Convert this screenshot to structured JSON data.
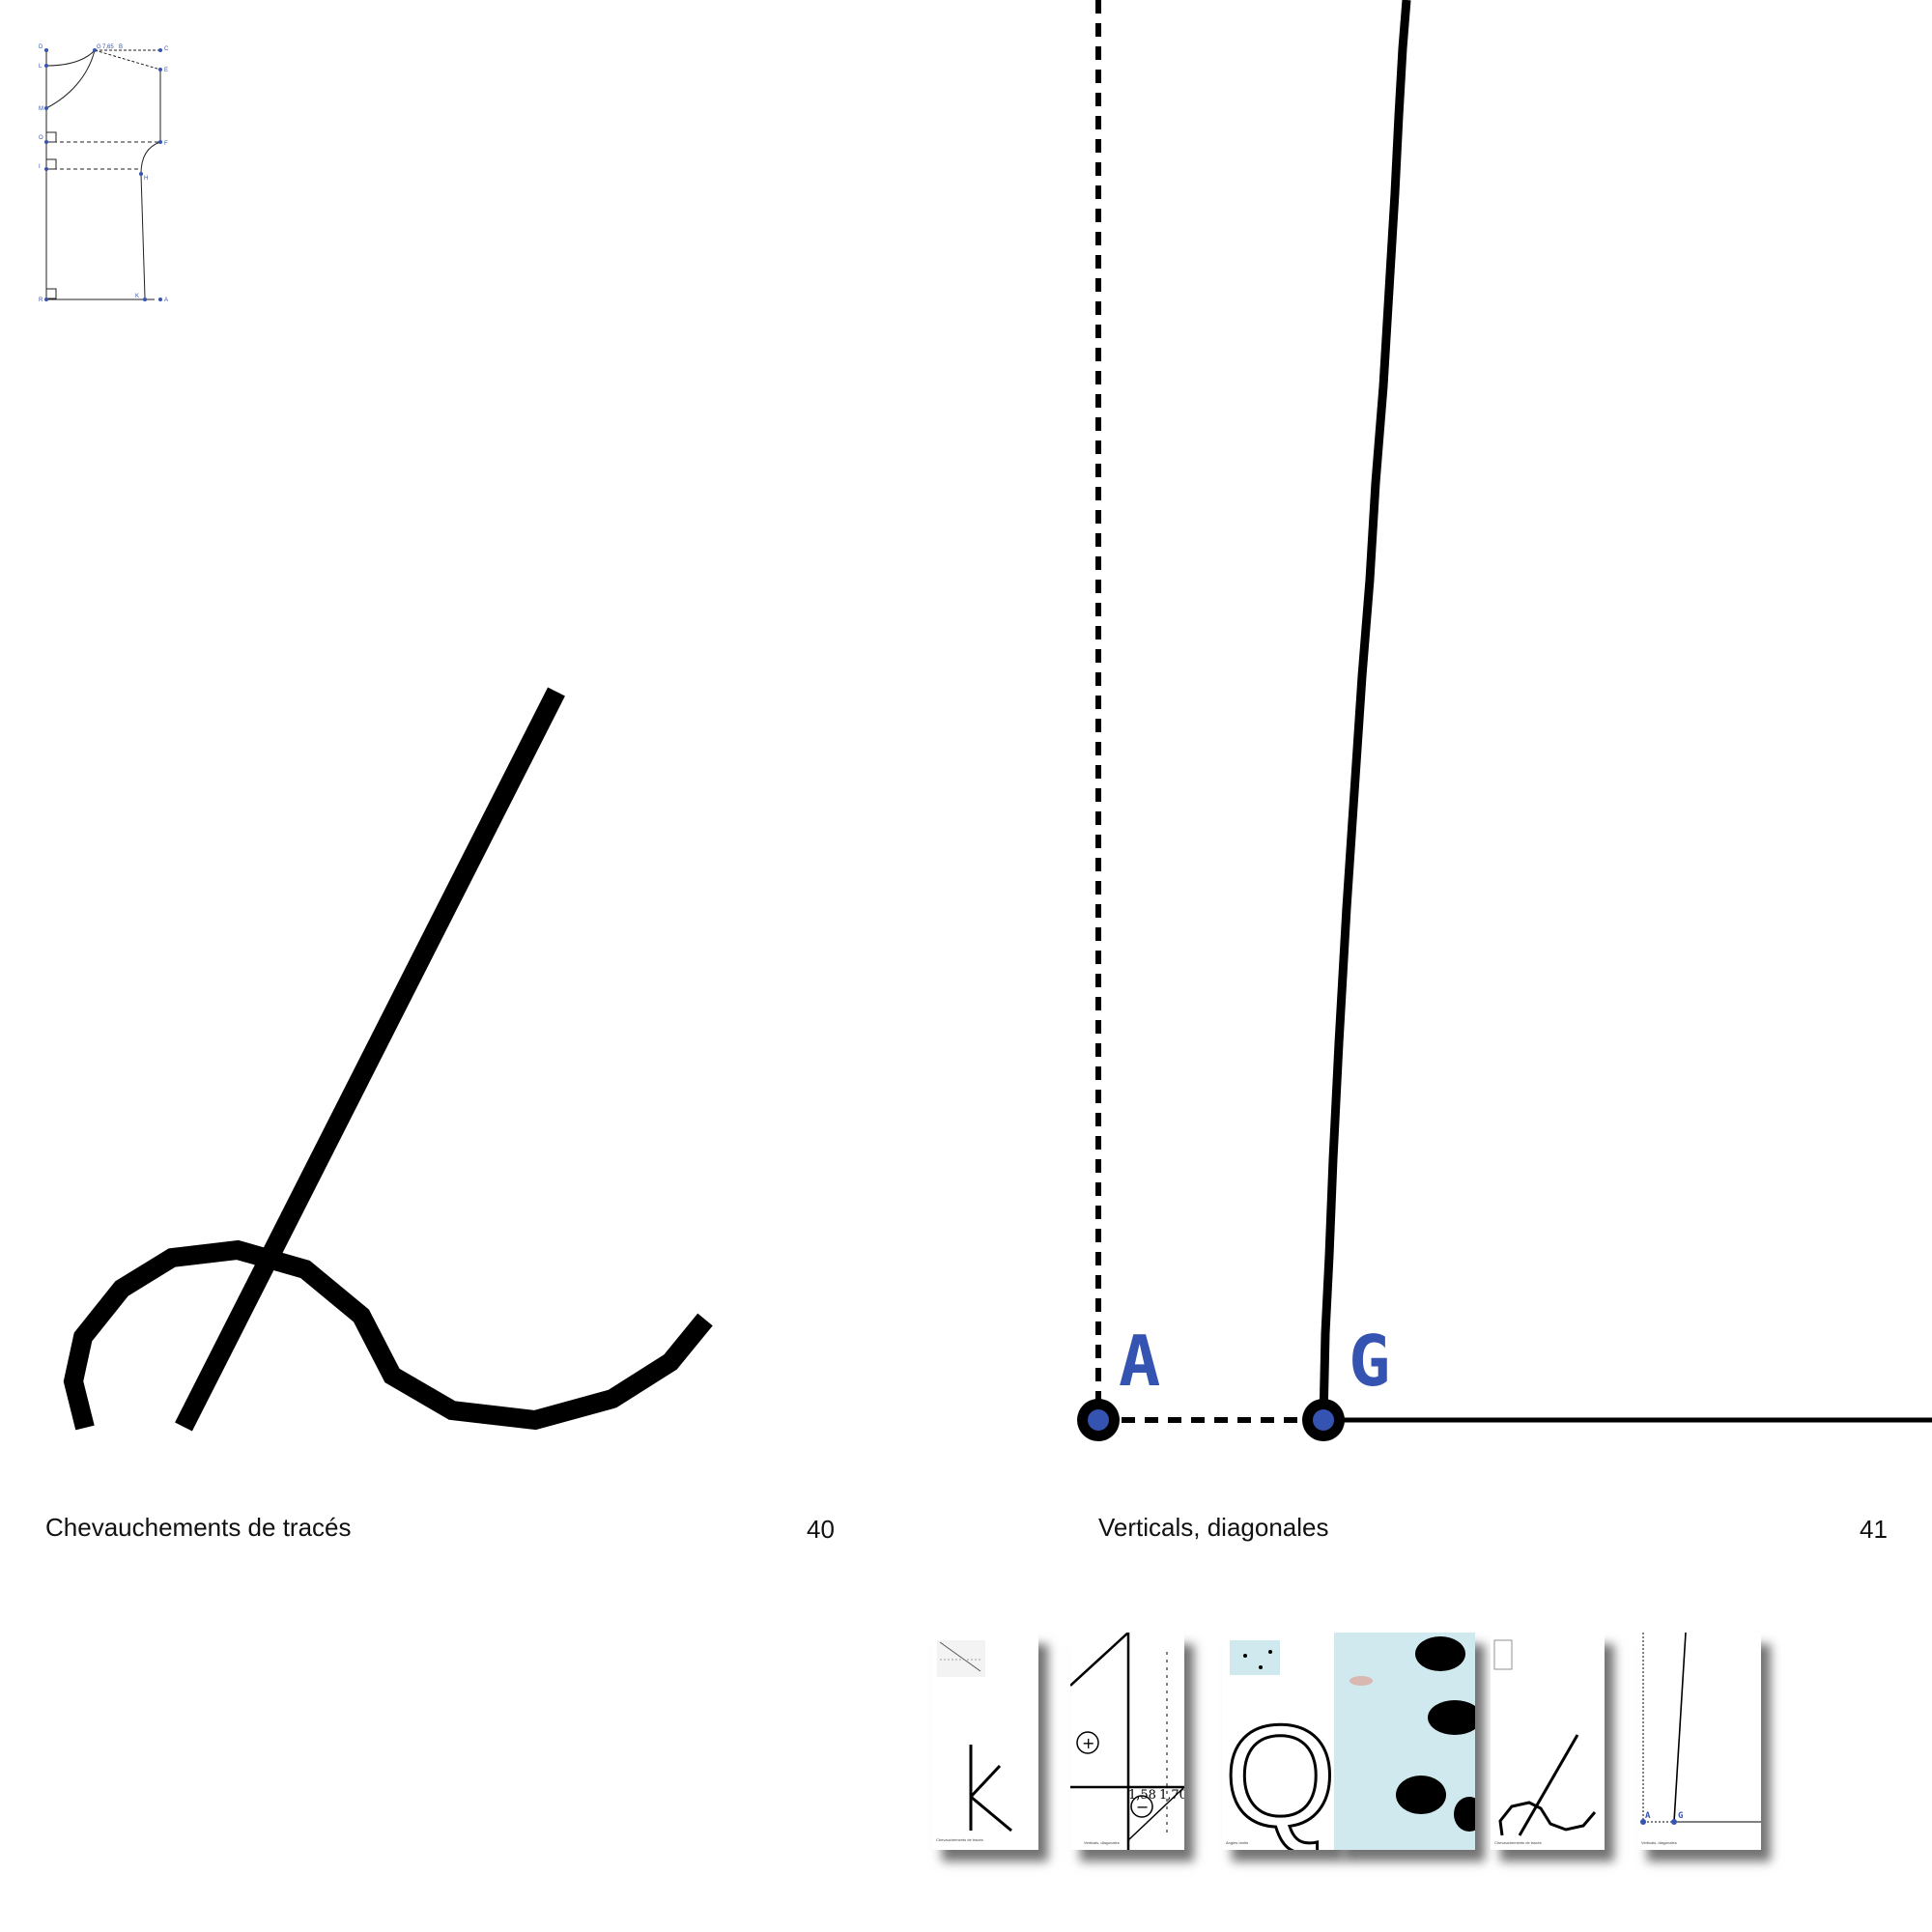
{
  "spread": {
    "left": {
      "caption": "Chevauchements de tracés",
      "page_number": "40"
    },
    "right": {
      "caption": "Verticals, diagonales",
      "page_number": "41"
    }
  },
  "point_labels": {
    "a": "A",
    "g": "G"
  },
  "pattern_labels": [
    "D",
    "C",
    "B",
    "L",
    "M",
    "O",
    "E",
    "F",
    "I",
    "H",
    "R",
    "A",
    "K",
    "G"
  ],
  "pattern_measure": "7,65",
  "thumbnails": {
    "captions": [
      "Chevauchements de tracés",
      "Verticals, diagonales",
      "Angles droits",
      "Chevauchements de tracés",
      "Verticals, diagonales"
    ],
    "measures": [
      "1,58",
      "1,70"
    ],
    "signs": [
      "+",
      "−"
    ],
    "glyphs": [
      "Q"
    ],
    "labels": [
      "A",
      "G"
    ]
  },
  "colors": {
    "ink": "#000000",
    "accent_blue": "#3553b0",
    "light_cyan": "#cfe9ee"
  }
}
